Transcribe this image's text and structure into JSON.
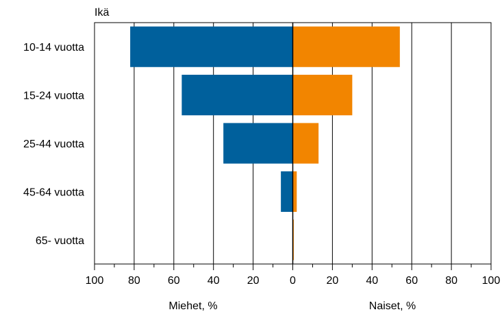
{
  "chart_data": {
    "type": "bar",
    "orientation": "horizontal",
    "layout": "population-pyramid",
    "title": "",
    "ylabel": "Ikä",
    "categories": [
      "10-14 vuotta",
      "15-24 vuotta",
      "25-44 vuotta",
      "45-64 vuotta",
      "65-  vuotta"
    ],
    "series": [
      {
        "name": "Miehet, %",
        "side": "left",
        "color": "#00609c",
        "values": [
          82,
          56,
          35,
          6,
          0
        ]
      },
      {
        "name": "Naiset, %",
        "side": "right",
        "color": "#f28500",
        "values": [
          54,
          30,
          13,
          2,
          0.5
        ]
      }
    ],
    "xlim": [
      -100,
      100
    ],
    "x_ticks": [
      -100,
      -80,
      -60,
      -40,
      -20,
      0,
      20,
      40,
      60,
      80,
      100
    ],
    "x_tick_labels": [
      "100",
      "80",
      "60",
      "40",
      "20",
      "0",
      "20",
      "40",
      "60",
      "80",
      "100"
    ],
    "xlabels": [
      "Miehet, %",
      "Naiset, %"
    ],
    "grid": "vertical",
    "legend": "none"
  }
}
